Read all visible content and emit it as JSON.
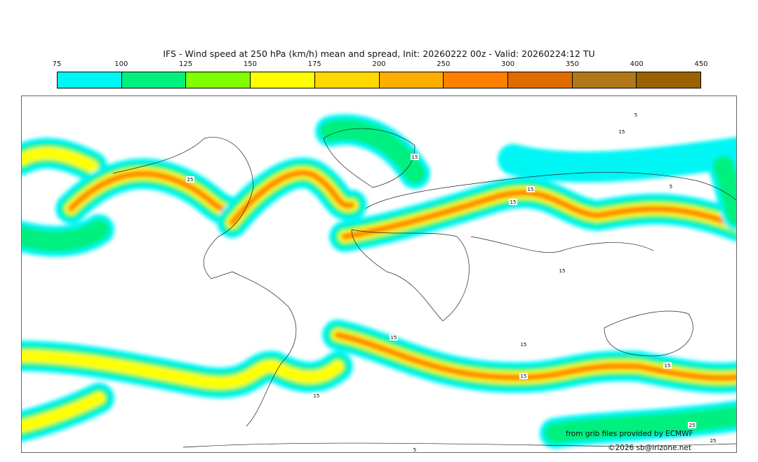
{
  "title": "IFS - Wind speed at 250 hPa (km/h) mean and spread, Init: 20260222 00z - Valid: 20260224:12 TU",
  "colorbar": {
    "ticks": [
      "75",
      "100",
      "125",
      "150",
      "175",
      "200",
      "250",
      "300",
      "350",
      "400",
      "450"
    ],
    "colors": [
      "#00f5f5",
      "#00f080",
      "#80ff00",
      "#ffff00",
      "#ffd800",
      "#ffae00",
      "#ff8000",
      "#e06c00",
      "#b07818",
      "#9a6200"
    ]
  },
  "contour_labels": [
    "5",
    "15",
    "25",
    "15",
    "15",
    "15",
    "5",
    "15",
    "15",
    "15",
    "15",
    "15",
    "15",
    "25",
    "25",
    "5"
  ],
  "credits": {
    "source": "from grib files provided by ECMWF",
    "copyright": "©2026 sb@irizone.net"
  }
}
